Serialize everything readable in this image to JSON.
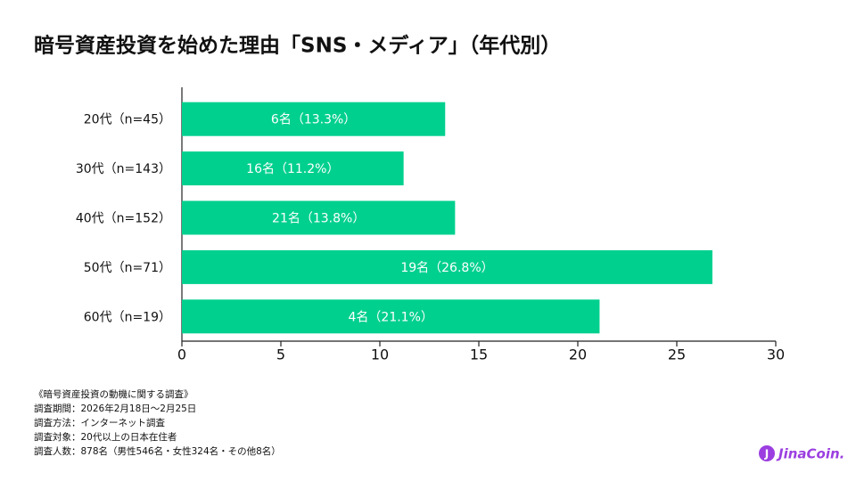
{
  "chart_data": {
    "type": "bar",
    "orientation": "horizontal",
    "title": "暗号資産投資を始めた理由「SNS・メディア」（年代別）",
    "categories": [
      "20代（n=45）",
      "30代（n=143）",
      "40代（n=152）",
      "50代（n=71）",
      "60代（n=19）"
    ],
    "values": [
      13.3,
      11.2,
      13.8,
      26.8,
      21.1
    ],
    "value_labels": [
      "6名（13.3%）",
      "16名（11.2%）",
      "21名（13.8%）",
      "19名（26.8%）",
      "4名（21.1%）"
    ],
    "color": "#00d08e",
    "xlim": [
      0,
      30
    ],
    "xticks": [
      0,
      5,
      10,
      15,
      20,
      25,
      30
    ]
  },
  "footer": {
    "notes": [
      "《暗号資産投資の動機に関する調査》",
      "調査期間：2026年2月18日〜2月25日",
      "調査方法：インターネット調査",
      "調査対象：20代以上の日本在住者",
      "調査人数：878名（男性546名・女性324名・その他8名）"
    ],
    "logo": "JinaCoin."
  }
}
